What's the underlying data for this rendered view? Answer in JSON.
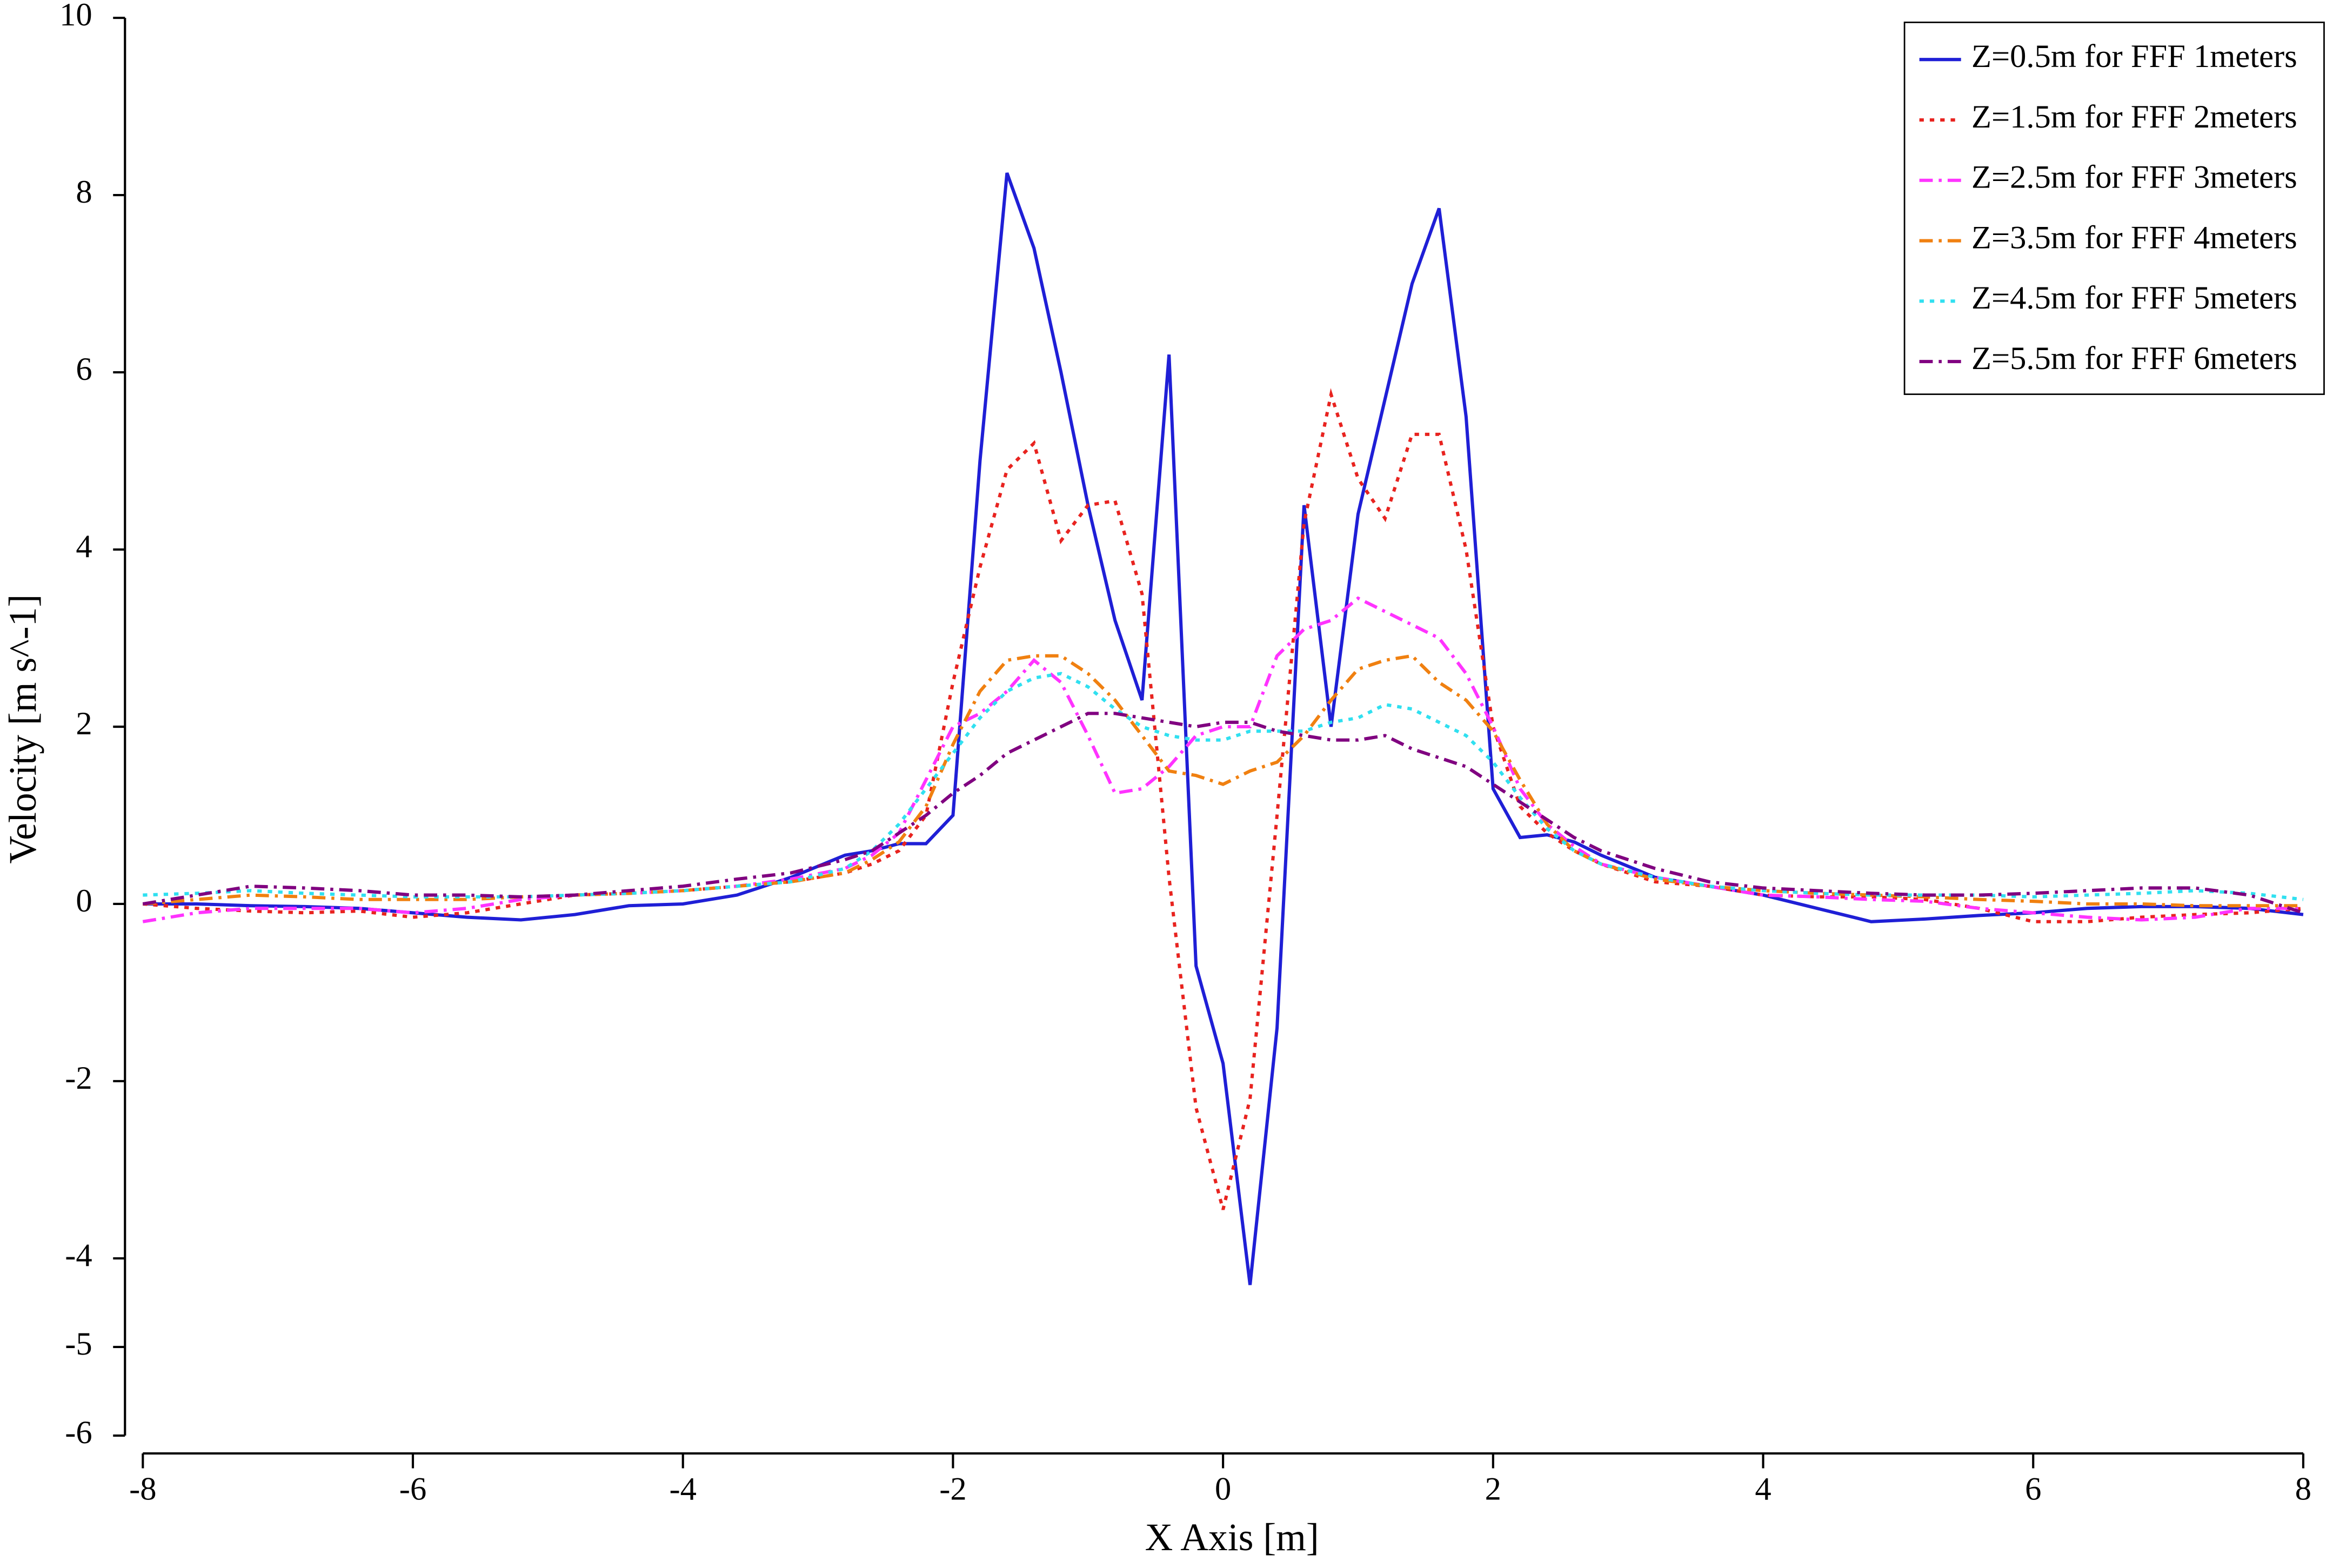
{
  "chart_data": {
    "type": "line",
    "xlabel": "X Axis [m]",
    "ylabel": "Velocity [m s^-1]",
    "xlim": [
      -8,
      8
    ],
    "ylim": [
      -6,
      10
    ],
    "xticks": [
      -8,
      -6,
      -4,
      -2,
      0,
      2,
      4,
      6,
      8
    ],
    "yticks": [
      -6,
      -5,
      -4,
      -2,
      0,
      2,
      4,
      6,
      8,
      10
    ],
    "legend": "upper right",
    "x": [
      -8,
      -7.6,
      -7.2,
      -6.8,
      -6.4,
      -6,
      -5.6,
      -5.2,
      -4.8,
      -4.4,
      -4,
      -3.6,
      -3.2,
      -2.8,
      -2.6,
      -2.4,
      -2.2,
      -2.0,
      -1.8,
      -1.6,
      -1.4,
      -1.2,
      -1.0,
      -0.8,
      -0.6,
      -0.4,
      -0.2,
      0,
      0.2,
      0.4,
      0.6,
      0.8,
      1.0,
      1.2,
      1.4,
      1.6,
      1.8,
      2.0,
      2.2,
      2.4,
      2.6,
      2.8,
      3.2,
      3.6,
      4,
      4.4,
      4.8,
      5.2,
      5.6,
      6,
      6.4,
      6.8,
      7.2,
      7.6,
      8
    ],
    "series": [
      {
        "name": "Z=0.5m for FFF 1meters",
        "color": "#1f1fd6",
        "style": "solid",
        "values": [
          0,
          0,
          -0.02,
          -0.03,
          -0.05,
          -0.1,
          -0.15,
          -0.18,
          -0.12,
          -0.02,
          0,
          0.1,
          0.3,
          0.55,
          0.6,
          0.68,
          0.68,
          1.0,
          5.0,
          8.25,
          7.4,
          6.0,
          4.5,
          3.2,
          2.3,
          6.2,
          -0.7,
          -1.8,
          -4.3,
          -1.4,
          4.5,
          2.0,
          4.4,
          5.7,
          7.0,
          7.85,
          5.5,
          1.3,
          0.75,
          0.78,
          0.7,
          0.55,
          0.3,
          0.2,
          0.1,
          -0.05,
          -0.2,
          -0.17,
          -0.13,
          -0.1,
          -0.05,
          -0.03,
          -0.03,
          -0.05,
          -0.12
        ]
      },
      {
        "name": "Z=1.5m for FFF 2meters",
        "color": "#e8231f",
        "style": "dotted",
        "values": [
          0,
          -0.05,
          -0.08,
          -0.1,
          -0.08,
          -0.15,
          -0.1,
          0,
          0.1,
          0.12,
          0.15,
          0.2,
          0.25,
          0.35,
          0.45,
          0.6,
          1.0,
          2.5,
          3.8,
          4.9,
          5.2,
          4.1,
          4.5,
          4.55,
          3.5,
          0.3,
          -2.3,
          -3.45,
          -2.2,
          1.0,
          4.3,
          5.75,
          4.8,
          4.35,
          5.3,
          5.3,
          4.0,
          2.0,
          1.1,
          0.8,
          0.6,
          0.45,
          0.25,
          0.2,
          0.1,
          0.08,
          0.08,
          0.05,
          -0.05,
          -0.2,
          -0.2,
          -0.15,
          -0.12,
          -0.1,
          -0.05
        ]
      },
      {
        "name": "Z=2.5m for FFF 3meters",
        "color": "#ff33ff",
        "style": "dashdot",
        "values": [
          -0.2,
          -0.1,
          -0.05,
          -0.05,
          -0.05,
          -0.1,
          -0.05,
          0.05,
          0.1,
          0.12,
          0.15,
          0.2,
          0.28,
          0.4,
          0.55,
          0.8,
          1.4,
          2.0,
          2.15,
          2.4,
          2.75,
          2.5,
          1.9,
          1.25,
          1.3,
          1.55,
          1.9,
          2.0,
          2.0,
          2.8,
          3.1,
          3.2,
          3.45,
          3.3,
          3.15,
          3.0,
          2.6,
          2.0,
          1.3,
          0.9,
          0.65,
          0.45,
          0.3,
          0.2,
          0.1,
          0.08,
          0.05,
          0.03,
          -0.05,
          -0.1,
          -0.15,
          -0.18,
          -0.15,
          -0.05,
          -0.05
        ]
      },
      {
        "name": "Z=3.5m for FFF 4meters",
        "color": "#f08010",
        "style": "dashdot",
        "values": [
          0,
          0.05,
          0.1,
          0.08,
          0.05,
          0.05,
          0.05,
          0.08,
          0.1,
          0.12,
          0.15,
          0.2,
          0.25,
          0.35,
          0.5,
          0.7,
          1.1,
          1.8,
          2.4,
          2.75,
          2.8,
          2.8,
          2.6,
          2.3,
          1.9,
          1.5,
          1.45,
          1.35,
          1.5,
          1.6,
          1.9,
          2.3,
          2.65,
          2.75,
          2.8,
          2.5,
          2.3,
          1.95,
          1.4,
          0.9,
          0.6,
          0.45,
          0.28,
          0.2,
          0.15,
          0.12,
          0.1,
          0.08,
          0.05,
          0.03,
          0,
          0,
          -0.02,
          -0.02,
          -0.02
        ]
      },
      {
        "name": "Z=4.5m for FFF 5meters",
        "color": "#30e0f0",
        "style": "dotted",
        "values": [
          0.1,
          0.12,
          0.15,
          0.12,
          0.1,
          0.08,
          0.08,
          0.08,
          0.1,
          0.12,
          0.15,
          0.2,
          0.25,
          0.4,
          0.6,
          0.9,
          1.3,
          1.7,
          2.1,
          2.4,
          2.55,
          2.6,
          2.45,
          2.2,
          2.0,
          1.9,
          1.85,
          1.85,
          1.95,
          1.95,
          1.95,
          2.05,
          2.1,
          2.25,
          2.2,
          2.05,
          1.9,
          1.6,
          1.2,
          0.85,
          0.6,
          0.45,
          0.3,
          0.2,
          0.15,
          0.12,
          0.1,
          0.1,
          0.1,
          0.08,
          0.1,
          0.12,
          0.15,
          0.12,
          0.05
        ]
      },
      {
        "name": "Z=5.5m for FFF 6meters",
        "color": "#800080",
        "style": "dashdot",
        "values": [
          0,
          0.1,
          0.2,
          0.18,
          0.15,
          0.1,
          0.1,
          0.08,
          0.1,
          0.15,
          0.2,
          0.28,
          0.35,
          0.5,
          0.6,
          0.8,
          1.0,
          1.25,
          1.45,
          1.7,
          1.85,
          2.0,
          2.15,
          2.15,
          2.1,
          2.05,
          2.0,
          2.05,
          2.05,
          1.95,
          1.9,
          1.85,
          1.85,
          1.9,
          1.75,
          1.65,
          1.55,
          1.35,
          1.15,
          0.95,
          0.75,
          0.6,
          0.4,
          0.25,
          0.18,
          0.15,
          0.12,
          0.1,
          0.1,
          0.12,
          0.15,
          0.18,
          0.18,
          0.1,
          -0.1
        ]
      }
    ]
  }
}
